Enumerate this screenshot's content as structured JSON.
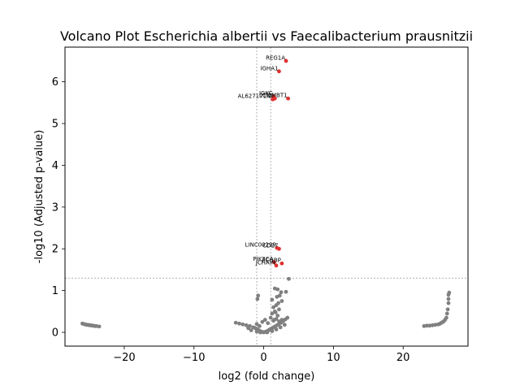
{
  "chart_data": {
    "type": "scatter",
    "title": "Volcano Plot Escherichia albertii vs Faecalibacterium prausnitzii",
    "xlabel": "log2 (fold change)",
    "ylabel": "-log10 (Adjusted p-value)",
    "xlim": [
      -28.5,
      29.3
    ],
    "ylim": [
      -0.33,
      6.83
    ],
    "xticks": [
      -20,
      -10,
      0,
      10,
      20
    ],
    "yticks": [
      0,
      1,
      2,
      3,
      4,
      5,
      6
    ],
    "xtick_labels": [
      "−20",
      "−10",
      "0",
      "10",
      "20"
    ],
    "ytick_labels": [
      "0",
      "1",
      "2",
      "3",
      "4",
      "5",
      "6"
    ],
    "grid": false,
    "thresholds": {
      "vlines": [
        -1,
        1
      ],
      "hline": 1.3
    },
    "colors": {
      "significant": "#e03030",
      "not_significant": "#808080"
    },
    "significant": [
      {
        "label": "REG1A",
        "x": 3.2,
        "y": 6.5
      },
      {
        "label": "IGHA1",
        "x": 2.2,
        "y": 6.25
      },
      {
        "label": "IGKC",
        "x": 1.4,
        "y": 5.65
      },
      {
        "label": "LCN2",
        "x": 1.6,
        "y": 5.6
      },
      {
        "label": "DMBT1",
        "x": 3.5,
        "y": 5.6
      },
      {
        "label": "AL627171.2",
        "x": 1.3,
        "y": 5.58
      },
      {
        "label": "LINC00299",
        "x": 1.9,
        "y": 2.02
      },
      {
        "label": "CD27",
        "x": 2.2,
        "y": 2.0
      },
      {
        "label": "PIK3CA",
        "x": 1.5,
        "y": 1.68
      },
      {
        "label": "FCGBP",
        "x": 2.6,
        "y": 1.65
      },
      {
        "label": "JCHAIN",
        "x": 1.8,
        "y": 1.6
      }
    ],
    "not_significant": [
      [
        -26.0,
        0.21
      ],
      [
        -25.8,
        0.2
      ],
      [
        -25.6,
        0.19
      ],
      [
        -25.4,
        0.18
      ],
      [
        -25.2,
        0.18
      ],
      [
        -25.0,
        0.17
      ],
      [
        -24.8,
        0.17
      ],
      [
        -24.6,
        0.16
      ],
      [
        -24.4,
        0.16
      ],
      [
        -24.2,
        0.15
      ],
      [
        -24.0,
        0.15
      ],
      [
        -23.6,
        0.14
      ],
      [
        23.0,
        0.15
      ],
      [
        23.4,
        0.16
      ],
      [
        23.8,
        0.16
      ],
      [
        24.2,
        0.17
      ],
      [
        24.6,
        0.18
      ],
      [
        25.0,
        0.19
      ],
      [
        25.2,
        0.2
      ],
      [
        25.4,
        0.22
      ],
      [
        25.6,
        0.24
      ],
      [
        25.8,
        0.26
      ],
      [
        26.0,
        0.3
      ],
      [
        26.2,
        0.35
      ],
      [
        26.3,
        0.45
      ],
      [
        26.4,
        0.55
      ],
      [
        26.5,
        0.7
      ],
      [
        26.5,
        0.8
      ],
      [
        26.6,
        0.95
      ],
      [
        26.5,
        0.9
      ],
      [
        -4.0,
        0.23
      ],
      [
        -3.5,
        0.21
      ],
      [
        -3.0,
        0.19
      ],
      [
        -2.5,
        0.17
      ],
      [
        -2.0,
        0.15
      ],
      [
        -1.5,
        0.12
      ],
      [
        -1.2,
        0.1
      ],
      [
        -1.0,
        0.08
      ],
      [
        -0.8,
        0.06
      ],
      [
        -0.6,
        0.04
      ],
      [
        -0.4,
        0.02
      ],
      [
        -0.2,
        0.01
      ],
      [
        0.0,
        0.0
      ],
      [
        0.2,
        0.01
      ],
      [
        0.4,
        0.02
      ],
      [
        0.6,
        0.04
      ],
      [
        0.8,
        0.06
      ],
      [
        1.0,
        0.08
      ],
      [
        1.3,
        0.11
      ],
      [
        1.6,
        0.14
      ],
      [
        1.9,
        0.17
      ],
      [
        2.2,
        0.2
      ],
      [
        2.5,
        0.23
      ],
      [
        2.8,
        0.27
      ],
      [
        3.1,
        0.31
      ],
      [
        3.4,
        0.35
      ],
      [
        -2.2,
        0.1
      ],
      [
        -1.8,
        0.05
      ],
      [
        -1.0,
        0.02
      ],
      [
        -0.5,
        0.0
      ],
      [
        0.5,
        0.0
      ],
      [
        1.2,
        0.03
      ],
      [
        1.8,
        0.07
      ],
      [
        2.4,
        0.12
      ],
      [
        3.0,
        0.18
      ],
      [
        -1.0,
        0.2
      ],
      [
        -0.6,
        0.15
      ],
      [
        -0.2,
        0.25
      ],
      [
        0.2,
        0.3
      ],
      [
        0.6,
        0.22
      ],
      [
        1.0,
        0.35
      ],
      [
        1.4,
        0.28
      ],
      [
        1.8,
        0.32
      ],
      [
        2.2,
        0.26
      ],
      [
        2.6,
        0.3
      ],
      [
        1.2,
        0.45
      ],
      [
        1.6,
        0.5
      ],
      [
        2.0,
        0.4
      ],
      [
        1.4,
        0.6
      ],
      [
        1.8,
        0.65
      ],
      [
        2.2,
        0.55
      ],
      [
        -0.9,
        0.8
      ],
      [
        -0.8,
        0.88
      ],
      [
        1.5,
        0.3
      ],
      [
        1.7,
        0.48
      ],
      [
        2.1,
        0.7
      ],
      [
        1.9,
        0.85
      ],
      [
        2.3,
        0.88
      ],
      [
        1.6,
        1.05
      ],
      [
        2.0,
        1.03
      ],
      [
        2.5,
        0.96
      ],
      [
        3.2,
        0.97
      ],
      [
        3.6,
        1.28
      ],
      [
        2.6,
        0.75
      ],
      [
        1.2,
        0.78
      ]
    ]
  }
}
